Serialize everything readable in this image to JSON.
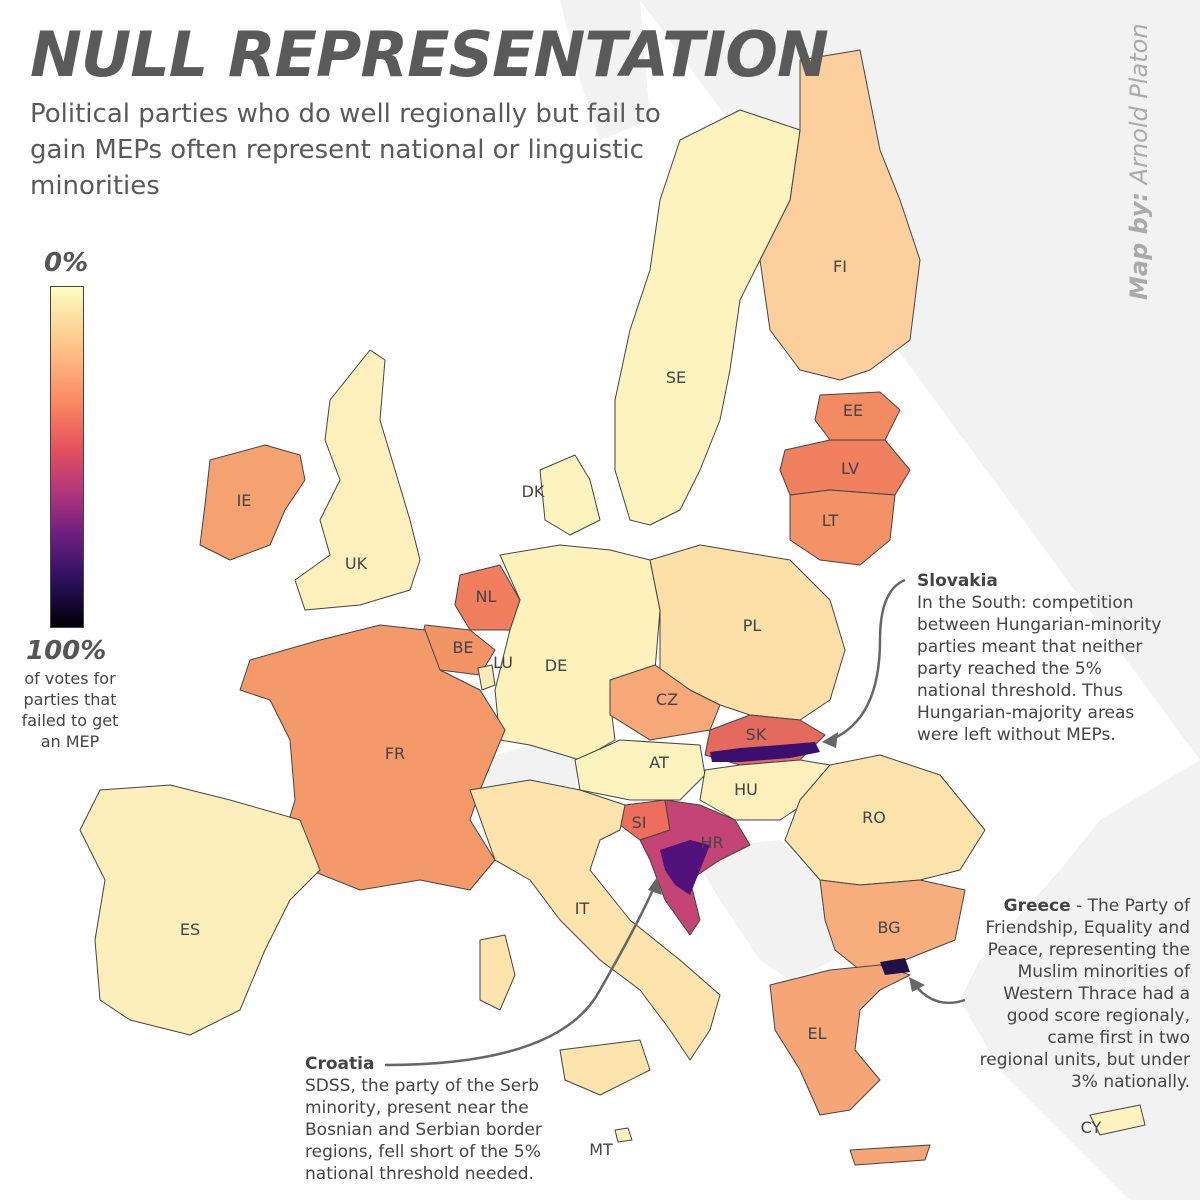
{
  "title": "NULL REPRESENTATION",
  "subtitle": "Political parties who do well regionally but fail to gain MEPs often represent national or linguistic  minorities",
  "credit": {
    "prefix": "Map by:",
    "name": "Arnold Platon"
  },
  "legend": {
    "top_label": "0%",
    "bottom_label": "100%",
    "description": "of votes for parties that failed to get an MEP",
    "colormap": "magma"
  },
  "countries": [
    {
      "code": "FI",
      "shade": "#fccf9c"
    },
    {
      "code": "SE",
      "shade": "#fdf3bf"
    },
    {
      "code": "EE",
      "shade": "#f38b62"
    },
    {
      "code": "LV",
      "shade": "#f0805f"
    },
    {
      "code": "LT",
      "shade": "#f39266"
    },
    {
      "code": "DK",
      "shade": "#fdf3bf"
    },
    {
      "code": "IE",
      "shade": "#f6a270"
    },
    {
      "code": "UK",
      "shade": "#fdf0bc"
    },
    {
      "code": "NL",
      "shade": "#ef7d5e"
    },
    {
      "code": "BE",
      "shade": "#f39467"
    },
    {
      "code": "LU",
      "shade": "#fdeeb8"
    },
    {
      "code": "DE",
      "shade": "#fdf2bc"
    },
    {
      "code": "PL",
      "shade": "#fde0a8"
    },
    {
      "code": "CZ",
      "shade": "#f6a878"
    },
    {
      "code": "SK",
      "shade": "#e46a5e"
    },
    {
      "code": "AT",
      "shade": "#fdf3bf"
    },
    {
      "code": "HU",
      "shade": "#fdf0bc"
    },
    {
      "code": "FR",
      "shade": "#f49a6a"
    },
    {
      "code": "RO",
      "shade": "#fde4ad"
    },
    {
      "code": "SI",
      "shade": "#ed6e5c"
    },
    {
      "code": "HR",
      "shade": "#c44475"
    },
    {
      "code": "IT",
      "shade": "#fde4ac"
    },
    {
      "code": "BG",
      "shade": "#f8ae7c"
    },
    {
      "code": "ES",
      "shade": "#fdefbb"
    },
    {
      "code": "EL",
      "shade": "#f6a676"
    },
    {
      "code": "MT",
      "shade": "#fdf3bf"
    },
    {
      "code": "CY",
      "shade": "#fdf3bf"
    }
  ],
  "annotations": {
    "slovakia": {
      "heading": "Slovakia",
      "text": "In the South: competition between Hungarian-minority parties meant that neither party reached the 5% national threshold. Thus Hungarian-majority areas were left without MEPs."
    },
    "greece": {
      "heading": "Greece",
      "text": " - The Party of Friendship, Equality and Peace, representing the Muslim minorities of Western Thrace had a good score regionaly, came first in two regional units, but under 3% nationally."
    },
    "croatia": {
      "heading": "Croatia",
      "text": "SDSS, the party of the Serb minority, present near the Bosnian and Serbian border regions, fell short of the 5% national threshold needed."
    }
  },
  "colors": {
    "sea": "#ffffff",
    "non_eu_land": "#f2f2f2",
    "border": "#444444",
    "text": "#555555",
    "arrow": "#666666"
  }
}
